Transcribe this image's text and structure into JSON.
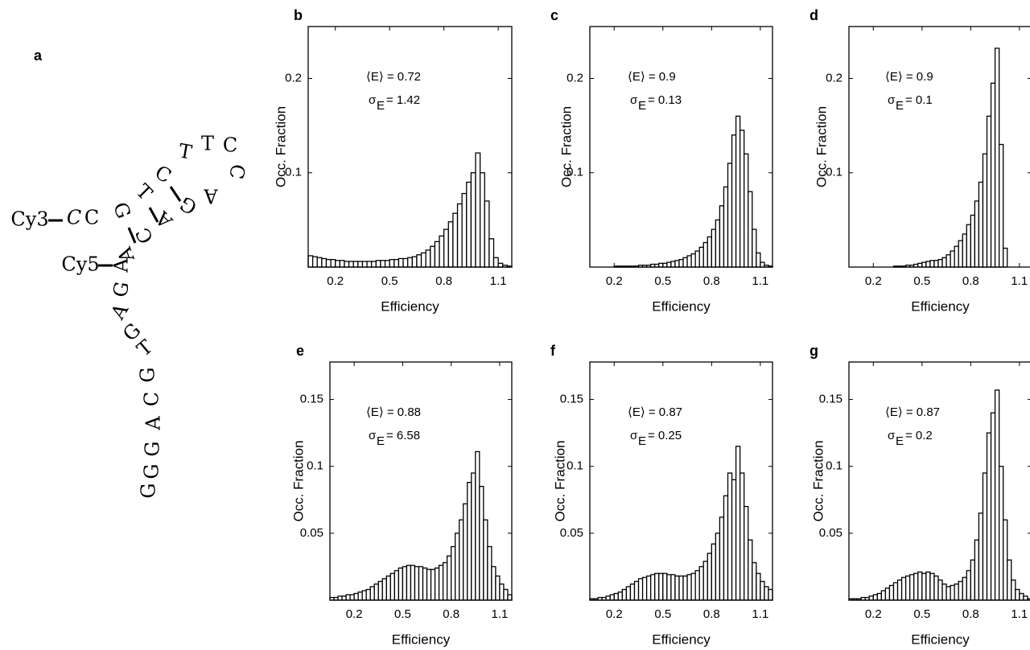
{
  "panel_a": {
    "label": "a",
    "strand1_label": "Cy3",
    "strand2_label": "Cy5",
    "strand1": [
      "C",
      "C",
      "G",
      "T",
      "C",
      "T",
      "T",
      "C",
      "C",
      "A",
      "G",
      "A",
      "C",
      "A"
    ],
    "strand2": [
      "A",
      "G",
      "A",
      "G",
      "T",
      "G",
      "C",
      "A",
      "G",
      "G",
      "G"
    ]
  },
  "chart_data": [
    {
      "type": "histogram",
      "panel": "b",
      "xlabel": "Efficiency",
      "ylabel": "Occ. Fraction",
      "annotation": {
        "mean": "⟨E⟩ = 0.72",
        "sigma": "σ",
        "sigma_sub": "E",
        "sigma_value": "= 1.42"
      },
      "xlim": [
        0.05,
        1.175
      ],
      "xticks": [
        0.2,
        0.5,
        0.8,
        1.1
      ],
      "ylim": [
        0,
        0.255
      ],
      "yticks": [
        0.1,
        0.2
      ],
      "color": "#ffffff",
      "bins": [
        0.05,
        0.075,
        0.1,
        0.125,
        0.15,
        0.175,
        0.2,
        0.225,
        0.25,
        0.275,
        0.3,
        0.325,
        0.35,
        0.375,
        0.4,
        0.425,
        0.45,
        0.475,
        0.5,
        0.525,
        0.55,
        0.575,
        0.6,
        0.625,
        0.65,
        0.675,
        0.7,
        0.725,
        0.75,
        0.775,
        0.8,
        0.825,
        0.85,
        0.875,
        0.9,
        0.925,
        0.95,
        0.975,
        1.0,
        1.025,
        1.05,
        1.075,
        1.1,
        1.125,
        1.15,
        1.175
      ],
      "values": [
        0.012,
        0.011,
        0.01,
        0.009,
        0.008,
        0.008,
        0.007,
        0.007,
        0.006,
        0.006,
        0.006,
        0.006,
        0.006,
        0.006,
        0.006,
        0.007,
        0.007,
        0.007,
        0.008,
        0.008,
        0.009,
        0.009,
        0.01,
        0.011,
        0.013,
        0.015,
        0.018,
        0.022,
        0.027,
        0.033,
        0.04,
        0.048,
        0.057,
        0.067,
        0.078,
        0.09,
        0.1,
        0.121,
        0.1,
        0.07,
        0.03,
        0.01,
        0.004,
        0.002,
        0.001
      ]
    },
    {
      "type": "histogram",
      "panel": "c",
      "xlabel": "Efficiency",
      "ylabel": "Occ. Fraction",
      "annotation": {
        "mean": "⟨E⟩ = 0.9",
        "sigma": "σ",
        "sigma_sub": "E",
        "sigma_value": "= 0.13"
      },
      "xlim": [
        0.05,
        1.175
      ],
      "xticks": [
        0.2,
        0.5,
        0.8,
        1.1
      ],
      "ylim": [
        0,
        0.255
      ],
      "yticks": [
        0.1,
        0.2
      ],
      "color": "#ffffff",
      "bins": [
        0.05,
        0.075,
        0.1,
        0.125,
        0.15,
        0.175,
        0.2,
        0.225,
        0.25,
        0.275,
        0.3,
        0.325,
        0.35,
        0.375,
        0.4,
        0.425,
        0.45,
        0.475,
        0.5,
        0.525,
        0.55,
        0.575,
        0.6,
        0.625,
        0.65,
        0.675,
        0.7,
        0.725,
        0.75,
        0.775,
        0.8,
        0.825,
        0.85,
        0.875,
        0.9,
        0.925,
        0.95,
        0.975,
        1.0,
        1.025,
        1.05,
        1.075,
        1.1,
        1.125,
        1.15,
        1.175
      ],
      "values": [
        0,
        0,
        0,
        0,
        0,
        0,
        0.001,
        0.001,
        0.001,
        0.001,
        0.001,
        0.001,
        0.002,
        0.002,
        0.002,
        0.003,
        0.003,
        0.004,
        0.004,
        0.005,
        0.006,
        0.007,
        0.008,
        0.01,
        0.012,
        0.014,
        0.017,
        0.021,
        0.026,
        0.032,
        0.04,
        0.05,
        0.065,
        0.085,
        0.11,
        0.14,
        0.16,
        0.145,
        0.12,
        0.08,
        0.04,
        0.015,
        0.005,
        0.002,
        0.001
      ]
    },
    {
      "type": "histogram",
      "panel": "d",
      "xlabel": "Efficiency",
      "ylabel": "Occ. Fraction",
      "annotation": {
        "mean": "⟨E⟩ = 0.9",
        "sigma": "σ",
        "sigma_sub": "E",
        "sigma_value": "= 0.1"
      },
      "xlim": [
        0.05,
        1.175
      ],
      "xticks": [
        0.2,
        0.5,
        0.8,
        1.1
      ],
      "ylim": [
        0,
        0.255
      ],
      "yticks": [
        0.1,
        0.2
      ],
      "color": "#ffffff",
      "bins": [
        0.05,
        0.075,
        0.1,
        0.125,
        0.15,
        0.175,
        0.2,
        0.225,
        0.25,
        0.275,
        0.3,
        0.325,
        0.35,
        0.375,
        0.4,
        0.425,
        0.45,
        0.475,
        0.5,
        0.525,
        0.55,
        0.575,
        0.6,
        0.625,
        0.65,
        0.675,
        0.7,
        0.725,
        0.75,
        0.775,
        0.8,
        0.825,
        0.85,
        0.875,
        0.9,
        0.925,
        0.95,
        0.975,
        1.0,
        1.025,
        1.05,
        1.075,
        1.1,
        1.125,
        1.15,
        1.175
      ],
      "values": [
        0,
        0,
        0,
        0,
        0,
        0,
        0,
        0,
        0,
        0,
        0,
        0.001,
        0.001,
        0.001,
        0.002,
        0.002,
        0.003,
        0.004,
        0.005,
        0.006,
        0.007,
        0.007,
        0.008,
        0.01,
        0.013,
        0.017,
        0.022,
        0.028,
        0.035,
        0.045,
        0.055,
        0.07,
        0.09,
        0.12,
        0.16,
        0.195,
        0.232,
        0.13,
        0.02,
        0,
        0,
        0,
        0,
        0,
        0
      ]
    },
    {
      "type": "histogram",
      "panel": "e",
      "xlabel": "Efficiency",
      "ylabel": "Occ. Fraction",
      "annotation": {
        "mean": "⟨E⟩ = 0.88",
        "sigma": "σ",
        "sigma_sub": "E",
        "sigma_value": "= 6.58"
      },
      "xlim": [
        0.05,
        1.175
      ],
      "xticks": [
        0.2,
        0.5,
        0.8,
        1.1
      ],
      "ylim": [
        0,
        0.178
      ],
      "yticks": [
        0.05,
        0.1,
        0.15
      ],
      "color": "#ffffff",
      "bins": [
        0.05,
        0.075,
        0.1,
        0.125,
        0.15,
        0.175,
        0.2,
        0.225,
        0.25,
        0.275,
        0.3,
        0.325,
        0.35,
        0.375,
        0.4,
        0.425,
        0.45,
        0.475,
        0.5,
        0.525,
        0.55,
        0.575,
        0.6,
        0.625,
        0.65,
        0.675,
        0.7,
        0.725,
        0.75,
        0.775,
        0.8,
        0.825,
        0.85,
        0.875,
        0.9,
        0.925,
        0.95,
        0.975,
        1.0,
        1.025,
        1.05,
        1.075,
        1.1,
        1.125,
        1.15,
        1.175
      ],
      "values": [
        0.002,
        0.002,
        0.003,
        0.003,
        0.004,
        0.004,
        0.005,
        0.006,
        0.007,
        0.008,
        0.01,
        0.012,
        0.014,
        0.016,
        0.018,
        0.02,
        0.022,
        0.024,
        0.025,
        0.026,
        0.026,
        0.025,
        0.025,
        0.024,
        0.023,
        0.023,
        0.024,
        0.026,
        0.028,
        0.033,
        0.04,
        0.05,
        0.06,
        0.072,
        0.088,
        0.095,
        0.111,
        0.085,
        0.06,
        0.04,
        0.025,
        0.018,
        0.012,
        0.008,
        0.004
      ]
    },
    {
      "type": "histogram",
      "panel": "f",
      "xlabel": "Efficiency",
      "ylabel": "Occ. Fraction",
      "annotation": {
        "mean": "⟨E⟩ = 0.87",
        "sigma": "σ",
        "sigma_sub": "E",
        "sigma_value": "= 0.25"
      },
      "xlim": [
        0.05,
        1.175
      ],
      "xticks": [
        0.2,
        0.5,
        0.8,
        1.1
      ],
      "ylim": [
        0,
        0.178
      ],
      "yticks": [
        0.05,
        0.1,
        0.15
      ],
      "color": "#ffffff",
      "bins": [
        0.05,
        0.075,
        0.1,
        0.125,
        0.15,
        0.175,
        0.2,
        0.225,
        0.25,
        0.275,
        0.3,
        0.325,
        0.35,
        0.375,
        0.4,
        0.425,
        0.45,
        0.475,
        0.5,
        0.525,
        0.55,
        0.575,
        0.6,
        0.625,
        0.65,
        0.675,
        0.7,
        0.725,
        0.75,
        0.775,
        0.8,
        0.825,
        0.85,
        0.875,
        0.9,
        0.925,
        0.95,
        0.975,
        1.0,
        1.025,
        1.05,
        1.075,
        1.1,
        1.125,
        1.15,
        1.175
      ],
      "values": [
        0.001,
        0.001,
        0.002,
        0.002,
        0.003,
        0.004,
        0.005,
        0.006,
        0.008,
        0.01,
        0.012,
        0.014,
        0.016,
        0.017,
        0.018,
        0.019,
        0.02,
        0.02,
        0.02,
        0.019,
        0.019,
        0.018,
        0.018,
        0.018,
        0.019,
        0.02,
        0.022,
        0.025,
        0.029,
        0.035,
        0.042,
        0.05,
        0.062,
        0.078,
        0.095,
        0.09,
        0.115,
        0.095,
        0.07,
        0.045,
        0.028,
        0.02,
        0.014,
        0.01,
        0.008
      ]
    },
    {
      "type": "histogram",
      "panel": "g",
      "xlabel": "Efficiency",
      "ylabel": "Occ. Fraction",
      "annotation": {
        "mean": "⟨E⟩ = 0.87",
        "sigma": "σ",
        "sigma_sub": "E",
        "sigma_value": "= 0.2"
      },
      "xlim": [
        0.05,
        1.175
      ],
      "xticks": [
        0.2,
        0.5,
        0.8,
        1.1
      ],
      "ylim": [
        0,
        0.178
      ],
      "yticks": [
        0.05,
        0.1,
        0.15
      ],
      "color": "#ffffff",
      "bins": [
        0.05,
        0.075,
        0.1,
        0.125,
        0.15,
        0.175,
        0.2,
        0.225,
        0.25,
        0.275,
        0.3,
        0.325,
        0.35,
        0.375,
        0.4,
        0.425,
        0.45,
        0.475,
        0.5,
        0.525,
        0.55,
        0.575,
        0.6,
        0.625,
        0.65,
        0.675,
        0.7,
        0.725,
        0.75,
        0.775,
        0.8,
        0.825,
        0.85,
        0.875,
        0.9,
        0.925,
        0.95,
        0.975,
        1.0,
        1.025,
        1.05,
        1.075,
        1.1,
        1.125,
        1.15,
        1.175
      ],
      "values": [
        0.001,
        0.001,
        0.001,
        0.002,
        0.002,
        0.003,
        0.004,
        0.005,
        0.007,
        0.009,
        0.011,
        0.013,
        0.015,
        0.017,
        0.018,
        0.019,
        0.02,
        0.021,
        0.02,
        0.021,
        0.02,
        0.018,
        0.015,
        0.012,
        0.01,
        0.011,
        0.012,
        0.014,
        0.017,
        0.022,
        0.03,
        0.045,
        0.065,
        0.095,
        0.125,
        0.14,
        0.157,
        0.1,
        0.06,
        0.03,
        0.015,
        0.008,
        0.005,
        0.003,
        0.001
      ]
    }
  ]
}
